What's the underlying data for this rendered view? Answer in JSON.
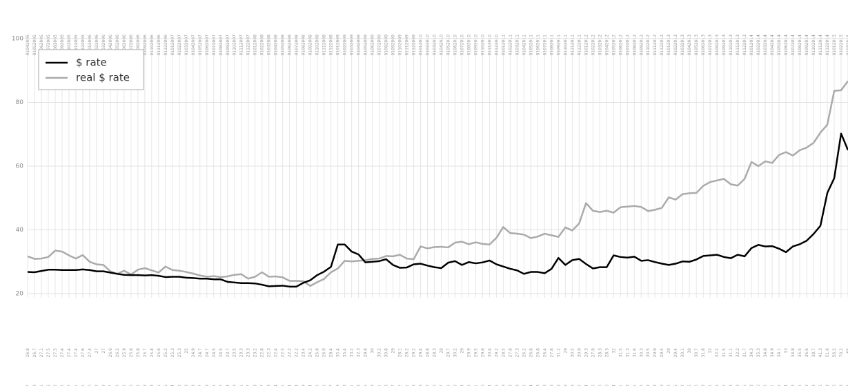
{
  "chart_data": {
    "type": "line",
    "categories": [
      "01042005",
      "01052005",
      "01062005",
      "01072005",
      "01082005",
      "01092005",
      "01102005",
      "01112005",
      "01122005",
      "01012006",
      "01022006",
      "01032006",
      "01042006",
      "01052006",
      "01062006",
      "01072006",
      "01082006",
      "01092006",
      "01102006",
      "01112006",
      "01122006",
      "01012007",
      "01022007",
      "01032007",
      "01042007",
      "01052007",
      "01062007",
      "01072007",
      "01082007",
      "01092007",
      "01102007",
      "01112007",
      "01122007",
      "01012008",
      "01022008",
      "01032008",
      "01042008",
      "01052008",
      "01062008",
      "01072008",
      "01082008",
      "01092008",
      "01102008",
      "01112008",
      "01122008",
      "01012009",
      "01022009",
      "01032009",
      "01042009",
      "01052009",
      "01062009",
      "01072009",
      "01082009",
      "01092009",
      "01102009",
      "01112009",
      "01122009",
      "01012010",
      "01022010",
      "01032010",
      "01042010",
      "01052010",
      "01062010",
      "01072010",
      "01082010",
      "01092010",
      "01102010",
      "01112010",
      "01122010",
      "01012011",
      "01022011",
      "01032011",
      "01042011",
      "01052011",
      "01062011",
      "01072011",
      "01082011",
      "01092011",
      "01102011",
      "01112011",
      "01122011",
      "01012012",
      "01022012",
      "01032012",
      "01042012",
      "01052012",
      "01062012",
      "01072012",
      "01082012",
      "01092012",
      "01102012",
      "01112012",
      "01122012",
      "01012013",
      "01022013",
      "01032013",
      "01042013",
      "01052013",
      "01062013",
      "01072013",
      "01082013",
      "01092013",
      "01102013",
      "01112013",
      "01122013",
      "01012014",
      "01022014",
      "01032014",
      "01042014",
      "01052014",
      "01062014",
      "01072014",
      "01082014",
      "01092014",
      "01102014",
      "01112014",
      "01122014",
      "01012015",
      "01022015",
      "01032015"
    ],
    "series": [
      {
        "name": "$ rate",
        "color": "#000000",
        "values": [
          26.8,
          26.7,
          27.1,
          27.5,
          27.5,
          27.4,
          27.4,
          27.4,
          27.6,
          27.4,
          27.0,
          27.0,
          26.6,
          26.2,
          25.9,
          25.8,
          25.8,
          25.7,
          25.8,
          25.6,
          25.2,
          25.3,
          25.3,
          25.0,
          24.9,
          24.7,
          24.7,
          24.5,
          24.5,
          23.7,
          23.5,
          23.3,
          23.3,
          23.2,
          22.8,
          22.3,
          22.4,
          22.5,
          22.2,
          22.2,
          23.4,
          24.2,
          25.8,
          26.9,
          28.4,
          35.4,
          35.4,
          33.2,
          32.3,
          29.8,
          30.0,
          30.2,
          30.8,
          29.0,
          28.1,
          28.2,
          29.2,
          29.4,
          28.8,
          28.3,
          28.0,
          29.7,
          30.2,
          29.0,
          29.9,
          29.5,
          29.8,
          30.4,
          29.2,
          28.5,
          27.8,
          27.3,
          26.2,
          26.8,
          26.8,
          26.4,
          27.8,
          31.2,
          29.0,
          30.5,
          30.9,
          29.3,
          27.9,
          28.3,
          28.3,
          32.0,
          31.5,
          31.3,
          31.6,
          30.3,
          30.5,
          29.9,
          29.4,
          29.0,
          29.4,
          30.1,
          30.0,
          30.7,
          31.8,
          32.0,
          32.2,
          31.5,
          31.1,
          32.2,
          31.7,
          34.3,
          35.3,
          34.8,
          34.9,
          34.1,
          33.0,
          34.8,
          35.5,
          36.6,
          38.7,
          41.3,
          51.6,
          56.2,
          70.2,
          65.0
        ]
      },
      {
        "name": "real $ rate",
        "color": "#aaaaaa",
        "values": [
          31.7,
          30.9,
          31.0,
          31.5,
          33.5,
          33.2,
          32.0,
          31.0,
          32.1,
          30.0,
          29.2,
          29.0,
          27.0,
          26.2,
          27.2,
          26.0,
          27.5,
          28.0,
          27.3,
          26.6,
          28.5,
          27.4,
          27.2,
          26.8,
          26.3,
          25.7,
          25.3,
          25.5,
          25.2,
          25.4,
          25.9,
          26.1,
          24.7,
          25.3,
          26.7,
          25.3,
          25.4,
          25.1,
          24.0,
          24.0,
          23.9,
          22.4,
          23.6,
          24.6,
          26.7,
          27.9,
          30.3,
          30.1,
          30.3,
          30.5,
          30.9,
          31.0,
          31.8,
          31.7,
          32.2,
          31.0,
          30.8,
          34.8,
          34.2,
          34.6,
          34.7,
          34.5,
          36.0,
          36.3,
          35.5,
          36.1,
          35.6,
          35.4,
          37.5,
          40.9,
          39.0,
          38.8,
          38.5,
          37.4,
          37.9,
          38.8,
          38.3,
          37.8,
          40.8,
          39.8,
          42.0,
          48.4,
          46.0,
          45.6,
          46.0,
          45.4,
          47.1,
          47.3,
          47.5,
          47.2,
          45.9,
          46.3,
          46.9,
          50.2,
          49.5,
          51.2,
          51.5,
          51.6,
          53.8,
          55.0,
          55.5,
          56.0,
          54.3,
          53.9,
          56.0,
          61.3,
          60.0,
          61.5,
          61.0,
          63.5,
          64.4,
          63.3,
          65.0,
          65.8,
          67.3,
          70.5,
          73.0,
          83.6,
          83.8,
          86.7
        ]
      }
    ],
    "ylim": [
      20,
      100
    ],
    "yticks": [
      20,
      40,
      60,
      80,
      100
    ],
    "grid": true,
    "legend": "top-left"
  }
}
